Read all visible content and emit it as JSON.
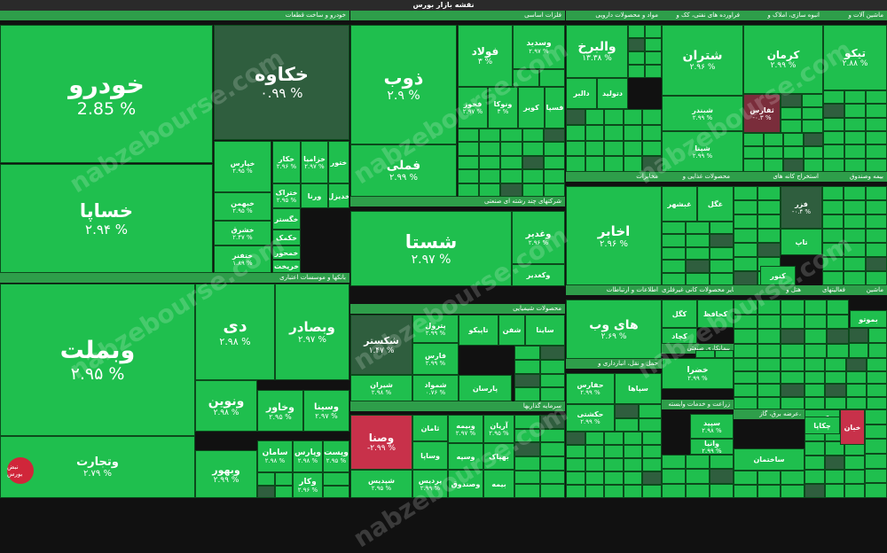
{
  "title": "نقشه بازار بورس",
  "watermark": "nabzebourse.com",
  "logo_text": "نبض بورس",
  "colors": {
    "up": "#1fbf4e",
    "dark": "#2f5e3e",
    "red": "#c8314a",
    "maroon": "#7a2d3b",
    "header": "#2e9e4a"
  },
  "sectors": [
    {
      "id": "auto",
      "label": "خودرو و ساخت قطعات"
    },
    {
      "id": "banks",
      "label": "بانکها و موسسات اعتباری"
    },
    {
      "id": "metals",
      "label": "فلزات اساسی"
    },
    {
      "id": "pharma",
      "label": "مواد و محصولات دارویی"
    },
    {
      "id": "refinery",
      "label": "فراورده های نفتی، کک و"
    },
    {
      "id": "mass",
      "label": "انبوه سازی، املاک و"
    },
    {
      "id": "machinery",
      "label": "ماشین آلات و"
    },
    {
      "id": "holding",
      "label": "شرکتهای چند رشته ای صنعتی"
    },
    {
      "id": "chem",
      "label": "محصولات شیمیایی"
    },
    {
      "id": "invest",
      "label": "سرمایه گذاریها"
    },
    {
      "id": "telecom",
      "label": "مخابرات"
    },
    {
      "id": "food",
      "label": "محصولات غذایی و"
    },
    {
      "id": "mining",
      "label": "استخراج کانه های"
    },
    {
      "id": "insurance",
      "label": "بیمه وصندوق"
    },
    {
      "id": "it",
      "label": "اطلاعات و ارتباطات"
    },
    {
      "id": "ceramic",
      "label": "سایر محصولات کانی غیرفلزی"
    },
    {
      "id": "hotel",
      "label": "هتل و"
    },
    {
      "id": "other_act",
      "label": "فعالیتهای"
    },
    {
      "id": "machinery2",
      "label": "ماشین"
    },
    {
      "id": "transport",
      "label": "حمل و نقل، انبارداری و"
    },
    {
      "id": "contract",
      "label": "پیمانکاری صنعتی"
    },
    {
      "id": "rail",
      "label": "رایانه و"
    },
    {
      "id": "bricks",
      "label": "قند و شکر"
    },
    {
      "id": "agri",
      "label": "زراعت و خدمات وابسته"
    },
    {
      "id": "cement",
      "label": "سیمان، آهک و گچ"
    },
    {
      "id": "power",
      "label": "عرضه برق، گاز،"
    },
    {
      "id": "fund",
      "label": "سایر واسطه گریهای مالی"
    }
  ],
  "tiles": [
    {
      "n": "خودرو",
      "p": "2.85 %"
    },
    {
      "n": "خکاوه",
      "p": "۰.۹۹ %"
    },
    {
      "n": "خساپا",
      "p": "۲.۹۴ %"
    },
    {
      "n": "خپارس",
      "p": "۲.۹۵ %"
    },
    {
      "n": "خکار",
      "p": "۲.۹۶ %"
    },
    {
      "n": "خزامیا",
      "p": "۲.۹۷ %"
    },
    {
      "n": "ختور",
      "p": ""
    },
    {
      "n": "خبهمن",
      "p": "۲.۹۵ %"
    },
    {
      "n": "ختراک",
      "p": "۲.۹۵ %"
    },
    {
      "n": "ورنا",
      "p": ""
    },
    {
      "n": "خدیزل",
      "p": ""
    },
    {
      "n": "خشرق",
      "p": "۲.۴۷ %"
    },
    {
      "n": "خگستر",
      "p": ""
    },
    {
      "n": "خکمک",
      "p": ""
    },
    {
      "n": "ختفنر",
      "p": "۱.۸۹ %"
    },
    {
      "n": "خمحور",
      "p": ""
    },
    {
      "n": "خریخت",
      "p": ""
    },
    {
      "n": "وبملت",
      "p": "۲.۹۵ %"
    },
    {
      "n": "دی",
      "p": "۲.۹۸ %"
    },
    {
      "n": "وبصادر",
      "p": "۲.۹۷ %"
    },
    {
      "n": "ونوین",
      "p": "۲.۹۸ %"
    },
    {
      "n": "وخاور",
      "p": "۲.۹۵ %"
    },
    {
      "n": "وسینا",
      "p": "۲.۹۷ %"
    },
    {
      "n": "وتجارت",
      "p": "۲.۷۹ %"
    },
    {
      "n": "وبهور",
      "p": "۲.۹۹ %"
    },
    {
      "n": "سامان",
      "p": "۲.۹۸ %"
    },
    {
      "n": "وپارس",
      "p": "۲.۹۸ %"
    },
    {
      "n": "وپست",
      "p": "۲.۹۵ %"
    },
    {
      "n": "وکار",
      "p": "۲.۹۶ %"
    },
    {
      "n": "ذوب",
      "p": "۲.۹ %"
    },
    {
      "n": "فولاد",
      "p": "۳ %"
    },
    {
      "n": "وسدید",
      "p": "۲.۹۷ %"
    },
    {
      "n": "فملی",
      "p": "۲.۹۹ %"
    },
    {
      "n": "فخوز",
      "p": "۲.۹۷ %"
    },
    {
      "n": "ونوکا",
      "p": "۳ %"
    },
    {
      "n": "کویر",
      "p": ""
    },
    {
      "n": "فسپا",
      "p": ""
    },
    {
      "n": "والبرخ",
      "p": "۱۳.۳۸ %"
    },
    {
      "n": "دالبر",
      "p": ""
    },
    {
      "n": "دتولید",
      "p": ""
    },
    {
      "n": "شتران",
      "p": "۲.۹۶ %"
    },
    {
      "n": "کرمان",
      "p": "۲.۹۹ %"
    },
    {
      "n": "تیکو",
      "p": "۲.۸۸ %"
    },
    {
      "n": "ثفارس",
      "p": "-۰.۳ %"
    },
    {
      "n": "شبندر",
      "p": "۲.۹۹ %"
    },
    {
      "n": "شپنا",
      "p": "۲.۹۹ %"
    },
    {
      "n": "شستا",
      "p": "۲.۹۷ %"
    },
    {
      "n": "وغدیر",
      "p": "۲.۹۶ %"
    },
    {
      "n": "اخابر",
      "p": "۲.۹۶ %"
    },
    {
      "n": "شکستر",
      "p": "۱.۴۷ %"
    },
    {
      "n": "شیران",
      "p": "۲.۹۸ %"
    },
    {
      "n": "وصنا",
      "p": "-۲.۹۹ %"
    },
    {
      "n": "های وب",
      "p": "۲.۶۹ %"
    },
    {
      "n": "خضرا",
      "p": "۲.۹۹ %"
    },
    {
      "n": "شمواد",
      "p": "۰.۷۶ %"
    },
    {
      "n": "وبیمه",
      "p": "۲.۹۷ %"
    },
    {
      "n": "آریان",
      "p": "۲.۹۵ %"
    },
    {
      "n": "فزر",
      "p": "-۰.۴ %"
    },
    {
      "n": "حفارس",
      "p": "۲.۹۹ %"
    },
    {
      "n": "حکشتی",
      "p": "۲.۹۹ %"
    },
    {
      "n": "سپاها",
      "p": ""
    },
    {
      "n": "سپید",
      "p": "۲.۹۸ %"
    },
    {
      "n": "وانیا",
      "p": "۲.۹۹ %"
    },
    {
      "n": "وکغدیر",
      "p": ""
    },
    {
      "n": "وسپه",
      "p": ""
    },
    {
      "n": "بهپاک",
      "p": ""
    },
    {
      "n": "ثامان",
      "p": ""
    },
    {
      "n": "وساپا",
      "p": ""
    },
    {
      "n": "پردیس",
      "p": "۲.۹۹ %"
    },
    {
      "n": "وصندوق",
      "p": ""
    },
    {
      "n": "بیمه",
      "p": ""
    },
    {
      "n": "ساختمان",
      "p": ""
    },
    {
      "n": "وکیش",
      "p": ""
    },
    {
      "n": "پارسان",
      "p": ""
    },
    {
      "n": "شپدیس",
      "p": "۲.۹۵ %"
    },
    {
      "n": "پترول",
      "p": "۲.۹۹ %"
    },
    {
      "n": "فارس",
      "p": "۲.۹۹ %"
    },
    {
      "n": "تاپیکو",
      "p": ""
    },
    {
      "n": "شفن",
      "p": ""
    },
    {
      "n": "ساینا",
      "p": ""
    },
    {
      "n": "کگل",
      "p": ""
    },
    {
      "n": "کحافظ",
      "p": ""
    },
    {
      "n": "کچاد",
      "p": ""
    },
    {
      "n": "کنور",
      "p": ""
    },
    {
      "n": "چکاپا",
      "p": ""
    },
    {
      "n": "خبان",
      "p": ""
    },
    {
      "n": "غبشهر",
      "p": ""
    },
    {
      "n": "غگل",
      "p": ""
    },
    {
      "n": "تاپ",
      "p": ""
    },
    {
      "n": "بموتو",
      "p": ""
    }
  ]
}
